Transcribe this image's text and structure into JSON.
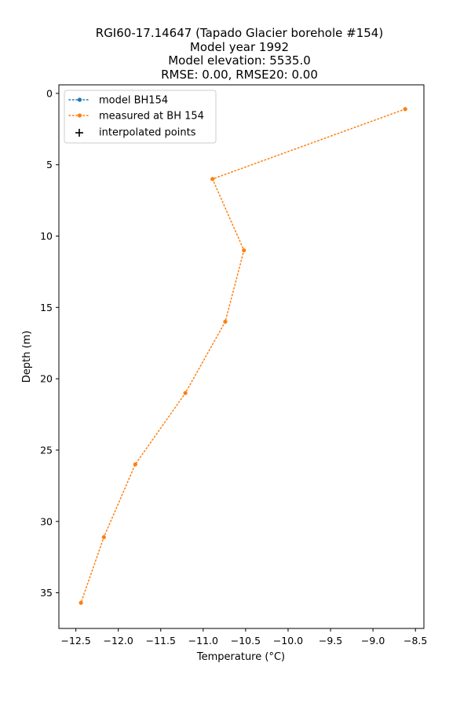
{
  "chart_data": {
    "type": "line",
    "title_lines": [
      "RGI60-17.14647 (Tapado Glacier borehole #154)",
      "Model year 1992",
      "Model elevation: 5535.0",
      "RMSE: 0.00, RMSE20: 0.00"
    ],
    "xlabel": "Temperature (°C)",
    "ylabel": "Depth (m)",
    "xlim": [
      -12.7,
      -8.4
    ],
    "ylim": [
      37.5,
      -0.6
    ],
    "y_inverted": true,
    "x_ticks": [
      -12.5,
      -12.0,
      -11.5,
      -11.0,
      -10.5,
      -10.0,
      -9.5,
      -9.0,
      -8.5
    ],
    "x_tick_labels": [
      "−12.5",
      "−12.0",
      "−11.5",
      "−11.0",
      "−10.5",
      "−10.0",
      "−9.5",
      "−9.0",
      "−8.5"
    ],
    "y_ticks": [
      0,
      5,
      10,
      15,
      20,
      25,
      30,
      35
    ],
    "y_tick_labels": [
      "0",
      "5",
      "10",
      "15",
      "20",
      "25",
      "30",
      "35"
    ],
    "grid": false,
    "legend_position": "top-left",
    "series": [
      {
        "name": "model BH154",
        "color": "#1f77b4",
        "style": "dotted-line-with-dots",
        "points": []
      },
      {
        "name": "measured at BH 154",
        "color": "#ff7f0e",
        "style": "dotted-line-with-dots",
        "points": [
          {
            "t": -8.62,
            "d": 1.1
          },
          {
            "t": -10.89,
            "d": 6.0
          },
          {
            "t": -10.52,
            "d": 11.0
          },
          {
            "t": -10.74,
            "d": 16.0
          },
          {
            "t": -11.21,
            "d": 21.0
          },
          {
            "t": -11.8,
            "d": 26.0
          },
          {
            "t": -12.17,
            "d": 31.1
          },
          {
            "t": -12.44,
            "d": 35.7
          }
        ]
      },
      {
        "name": "interpolated points",
        "color": "#000000",
        "style": "plus-marker",
        "points": []
      }
    ]
  }
}
